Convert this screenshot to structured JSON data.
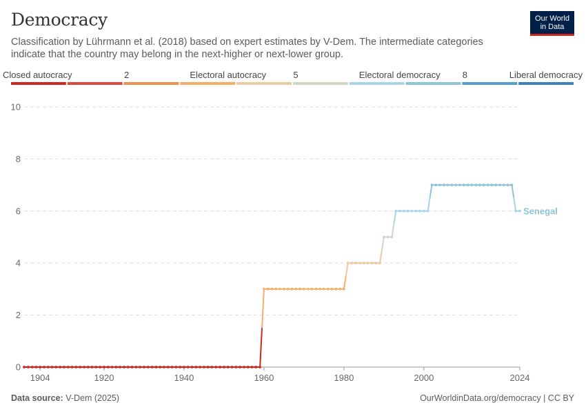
{
  "header": {
    "title": "Democracy",
    "subtitle": "Classification by Lührmann et al. (2018) based on expert estimates by V-Dem. The intermediate categories indicate that the country may belong in the next-higher or next-lower group."
  },
  "logo": {
    "line1": "Our World",
    "line2": "in Data"
  },
  "legend": {
    "labels": [
      {
        "text": "Closed autocracy",
        "at": 0
      },
      {
        "text": "2",
        "at": 2
      },
      {
        "text": "Electoral autocracy",
        "at": 3
      },
      {
        "text": "5",
        "at": 5
      },
      {
        "text": "Electoral democracy",
        "at": 6
      },
      {
        "text": "8",
        "at": 8
      },
      {
        "text": "Liberal democracy",
        "at": 9
      }
    ],
    "colors": [
      "#ce261e",
      "#dc4b39",
      "#ee9150",
      "#f4b067",
      "#ecca9f",
      "#cbd9c6",
      "#a8d7e3",
      "#8fc3d8",
      "#569fca",
      "#3a82b8"
    ]
  },
  "chart_data": {
    "type": "line",
    "title": "Democracy",
    "ylim": [
      0,
      10
    ],
    "xlim": [
      1900,
      2024
    ],
    "y_ticks": [
      0,
      2,
      4,
      6,
      8,
      10
    ],
    "x_ticks": [
      1904,
      1920,
      1940,
      1960,
      1980,
      2000,
      2024
    ],
    "grid": true,
    "series": [
      {
        "name": "Senegal",
        "points": [
          [
            1900,
            0
          ],
          [
            1959,
            0
          ],
          [
            1960,
            3
          ],
          [
            1980,
            3
          ],
          [
            1981,
            4
          ],
          [
            1989,
            4
          ],
          [
            1990,
            5
          ],
          [
            1992,
            5
          ],
          [
            1993,
            6
          ],
          [
            2001,
            6
          ],
          [
            2002,
            7
          ],
          [
            2022,
            7
          ],
          [
            2023,
            6
          ],
          [
            2024,
            6
          ]
        ]
      }
    ]
  },
  "footer": {
    "source_label": "Data source:",
    "source_value": "V-Dem (2025)",
    "right": "OurWorldinData.org/democracy | CC BY"
  }
}
